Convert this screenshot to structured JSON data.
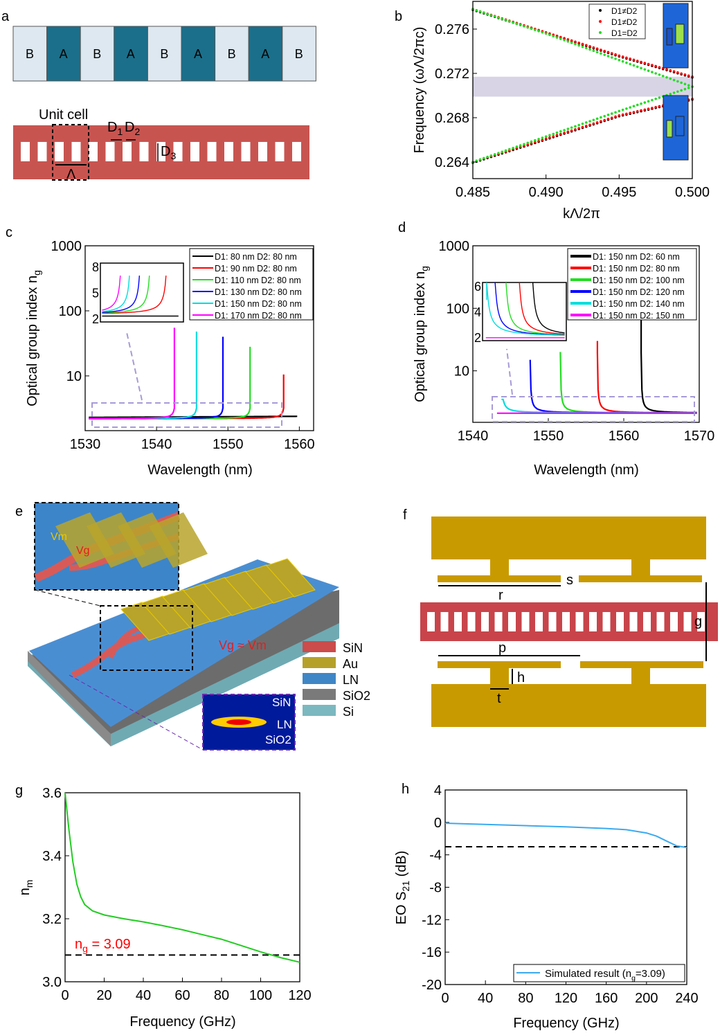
{
  "panel_labels": [
    "a",
    "b",
    "c",
    "d",
    "e",
    "f",
    "g",
    "h"
  ],
  "panel_a": {
    "layers": [
      "B",
      "A",
      "B",
      "A",
      "B",
      "A",
      "B",
      "A",
      "B"
    ],
    "unit_cell": "Unit cell",
    "d1": "D",
    "d1_sub": "1",
    "d2": "D",
    "d2_sub": "2",
    "d3": "D",
    "d3_sub": "3",
    "lambda": "Λ",
    "colors": {
      "A": "#1b6f8a",
      "B": "#dde8f0",
      "waveguide": "#c85450"
    }
  },
  "panel_e": {
    "labels": {
      "vm": "Vm",
      "vg": "Vg",
      "approx": "Vg ≈ Vm"
    },
    "legend": [
      {
        "label": "SiN",
        "color": "#cc4b4b"
      },
      {
        "label": "Au",
        "color": "#b5a12a"
      },
      {
        "label": "LN",
        "color": "#3f86c6"
      },
      {
        "label": "SiO2",
        "color": "#7a7a7a"
      },
      {
        "label": "Si",
        "color": "#7bb8bf"
      }
    ],
    "mode_labels": [
      "SiN",
      "LN",
      "SiO2"
    ]
  },
  "panel_f": {
    "labels": {
      "s": "s",
      "r": "r",
      "g": "g",
      "p": "p",
      "h": "h",
      "t": "t"
    },
    "colors": {
      "electrode": "#c99a00",
      "waveguide": "#c8444a"
    }
  },
  "chart_data": [
    {
      "panel": "b",
      "type": "scatter",
      "xlabel": "kΛ/2π",
      "ylabel": "Frequency (ωΛ/2πc)",
      "xlim": [
        0.485,
        0.5
      ],
      "ylim": [
        0.2625,
        0.2785
      ],
      "xticks": [
        "0.485",
        "0.490",
        "0.495",
        "0.500"
      ],
      "yticks": [
        "0.264",
        "0.268",
        "0.272",
        "0.276"
      ],
      "bandgap": [
        0.2699,
        0.2717
      ],
      "legend_placement": "top-right",
      "series": [
        {
          "name": "D1≠D2",
          "color": "#000000",
          "x": [
            0.485,
            0.49,
            0.495,
            0.5
          ],
          "y_upper": [
            0.2778,
            0.2757,
            0.2736,
            0.2717
          ],
          "y_lower": [
            0.264,
            0.2661,
            0.2682,
            0.2697
          ]
        },
        {
          "name": "D1≠D2",
          "color": "#ff0000",
          "x": [
            0.485,
            0.49,
            0.495,
            0.5
          ],
          "y_upper": [
            0.2778,
            0.2757,
            0.2736,
            0.2717
          ],
          "y_lower": [
            0.264,
            0.2661,
            0.2682,
            0.2697
          ]
        },
        {
          "name": "D1=D2",
          "color": "#22dd22",
          "x": [
            0.485,
            0.49,
            0.495,
            0.5
          ],
          "y_upper": [
            0.2778,
            0.2756,
            0.2732,
            0.2708
          ],
          "y_lower": [
            0.264,
            0.2663,
            0.2686,
            0.2708
          ]
        }
      ]
    },
    {
      "panel": "c",
      "type": "line",
      "xlabel": "Wavelength (nm)",
      "ylabel": "Optical group index n",
      "ylabel_sub": "g",
      "xlim": [
        1530,
        1562
      ],
      "ylim": [
        1.44,
        1000
      ],
      "yscale": "log",
      "xticks": [
        "1530",
        "1540",
        "1550",
        "1560"
      ],
      "yticks": [
        "10",
        "100",
        "1000"
      ],
      "inset_yticks": [
        "2",
        "5",
        "8"
      ],
      "legend_placement": "top-right",
      "series": [
        {
          "name": "D1: 80 nm D2: 80 nm",
          "color": "#000000",
          "edge": null,
          "peak": 2.3
        },
        {
          "name": "D1: 90 nm D2: 80 nm",
          "color": "#ff0000",
          "edge": 1557.8,
          "peak": 10.5
        },
        {
          "name": "D1: 110 nm D2: 80 nm",
          "color": "#22dd22",
          "edge": 1553.1,
          "peak": 28
        },
        {
          "name": "D1: 130 nm D2: 80 nm",
          "color": "#0000ff",
          "edge": 1549.3,
          "peak": 40
        },
        {
          "name": "D1: 150 nm D2: 80 nm",
          "color": "#00dddd",
          "edge": 1545.6,
          "peak": 48
        },
        {
          "name": "D1: 170 nm D2: 80 nm",
          "color": "#ff00ff",
          "edge": 1542.5,
          "peak": 55
        }
      ]
    },
    {
      "panel": "d",
      "type": "line",
      "xlabel": "Wavelength (nm)",
      "ylabel": "Optical group index n",
      "ylabel_sub": "g",
      "xlim": [
        1540,
        1570
      ],
      "ylim": [
        1.5,
        1000
      ],
      "yscale": "log",
      "xticks": [
        "1540",
        "1550",
        "1560",
        "1570"
      ],
      "yticks": [
        "10",
        "100",
        "1000"
      ],
      "inset_yticks": [
        "2",
        "4",
        "6"
      ],
      "legend_placement": "top-right",
      "series": [
        {
          "name": "D1: 150 nm  D2: 60 nm",
          "color": "#000000",
          "edge": 1562.3,
          "peak": 70
        },
        {
          "name": "D1: 150 nm  D2: 80 nm",
          "color": "#ff0000",
          "edge": 1556.5,
          "peak": 30
        },
        {
          "name": "D1: 150 nm  D2: 100 nm",
          "color": "#22dd22",
          "edge": 1551.6,
          "peak": 20
        },
        {
          "name": "D1: 150 nm  D2: 120 nm",
          "color": "#0000ff",
          "edge": 1547.6,
          "peak": 15
        },
        {
          "name": "D1: 150 nm  D2: 140 nm",
          "color": "#00dddd",
          "edge": 1543.8,
          "peak": 3.5
        },
        {
          "name": "D1: 150 nm  D2: 150 nm",
          "color": "#ff00ff",
          "edge": null,
          "peak": 2.1
        }
      ]
    },
    {
      "panel": "g",
      "type": "line",
      "xlabel": "Frequency (GHz)",
      "ylabel": "n",
      "ylabel_sub": "m",
      "xlim": [
        0,
        120
      ],
      "ylim": [
        3.0,
        3.6
      ],
      "xticks": [
        "0",
        "20",
        "40",
        "60",
        "80",
        "100",
        "120"
      ],
      "yticks": [
        "3.0",
        "3.2",
        "3.4",
        "3.6"
      ],
      "series": [
        {
          "color": "#22cc22",
          "x": [
            0,
            2,
            4,
            6,
            8,
            10,
            14,
            20,
            30,
            40,
            50,
            60,
            70,
            80,
            90,
            100,
            110,
            120
          ],
          "y": [
            3.6,
            3.48,
            3.38,
            3.31,
            3.27,
            3.245,
            3.225,
            3.212,
            3.2,
            3.19,
            3.178,
            3.165,
            3.15,
            3.135,
            3.115,
            3.095,
            3.077,
            3.062
          ]
        }
      ],
      "reference": {
        "y": 3.085,
        "label": "n",
        "label_sub": "g",
        "label_rest": " = 3.09",
        "color": "#ff0000"
      }
    },
    {
      "panel": "h",
      "type": "line",
      "xlabel": "Frequency (GHz)",
      "ylabel": "EO S",
      "ylabel_sub": "21",
      "ylabel_rest": " (dB)",
      "xlim": [
        0,
        240
      ],
      "ylim": [
        -20,
        4
      ],
      "xticks": [
        "0",
        "40",
        "80",
        "120",
        "160",
        "200",
        "240"
      ],
      "yticks": [
        "-20",
        "-16",
        "-12",
        "-8",
        "-4",
        "0",
        "4"
      ],
      "legend_placement": "bottom-right",
      "series": [
        {
          "name": "Simulated result (n",
          "name_sub": "g",
          "name_rest": "=3.09)",
          "color": "#3aaaf0",
          "x": [
            0,
            40,
            80,
            120,
            160,
            180,
            200,
            210,
            220,
            230,
            240
          ],
          "y": [
            -0.1,
            -0.25,
            -0.4,
            -0.55,
            -0.75,
            -0.9,
            -1.3,
            -1.7,
            -2.3,
            -2.9,
            -3.1
          ]
        }
      ],
      "reference": {
        "y": -3
      }
    }
  ]
}
